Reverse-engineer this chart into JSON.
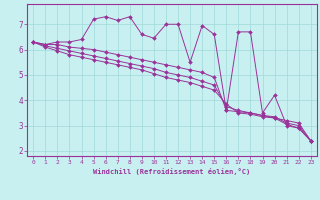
{
  "background_color": "#c8f0f0",
  "grid_color": "#a0d8d8",
  "line_color": "#993399",
  "marker_color": "#993399",
  "xlabel": "Windchill (Refroidissement éolien,°C)",
  "xlim": [
    -0.5,
    23.5
  ],
  "ylim": [
    1.8,
    7.8
  ],
  "yticks": [
    2,
    3,
    4,
    5,
    6,
    7
  ],
  "xticks": [
    0,
    1,
    2,
    3,
    4,
    5,
    6,
    7,
    8,
    9,
    10,
    11,
    12,
    13,
    14,
    15,
    16,
    17,
    18,
    19,
    20,
    21,
    22,
    23
  ],
  "series": [
    [
      6.3,
      6.2,
      6.3,
      6.3,
      6.4,
      7.2,
      7.3,
      7.15,
      7.3,
      6.6,
      6.45,
      7.0,
      7.0,
      5.5,
      6.95,
      6.6,
      3.6,
      6.7,
      6.7,
      3.5,
      4.2,
      3.0,
      2.9,
      2.4
    ],
    [
      6.3,
      6.2,
      6.2,
      6.1,
      6.05,
      6.0,
      5.9,
      5.8,
      5.7,
      5.6,
      5.5,
      5.4,
      5.3,
      5.2,
      5.1,
      4.9,
      3.6,
      3.55,
      3.5,
      3.4,
      3.3,
      3.2,
      3.1,
      2.4
    ],
    [
      6.3,
      6.15,
      6.05,
      5.95,
      5.85,
      5.75,
      5.65,
      5.55,
      5.45,
      5.35,
      5.25,
      5.1,
      5.0,
      4.9,
      4.75,
      4.6,
      3.75,
      3.6,
      3.5,
      3.4,
      3.35,
      3.1,
      3.0,
      2.4
    ],
    [
      6.3,
      6.1,
      5.95,
      5.8,
      5.7,
      5.6,
      5.5,
      5.4,
      5.3,
      5.2,
      5.05,
      4.9,
      4.8,
      4.7,
      4.55,
      4.4,
      3.85,
      3.5,
      3.45,
      3.35,
      3.3,
      3.05,
      2.9,
      2.4
    ]
  ]
}
